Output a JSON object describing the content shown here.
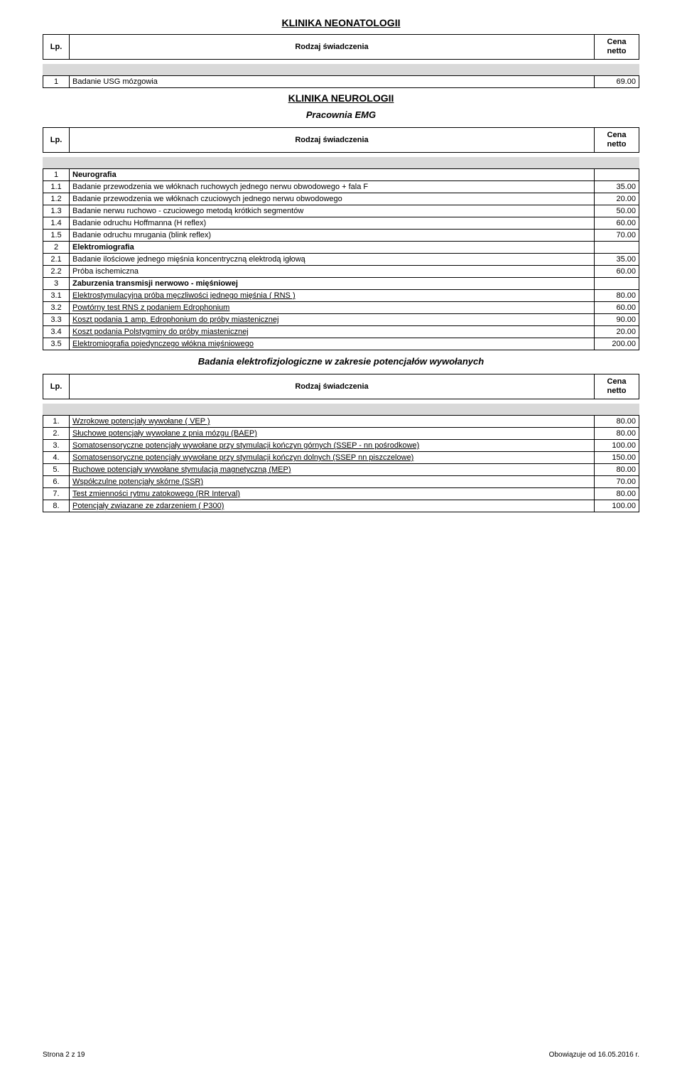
{
  "labels": {
    "lp": "Lp.",
    "rodzaj": "Rodzaj świadczenia",
    "cena1": "Cena",
    "cena2": "netto"
  },
  "sections": {
    "neonatologii": {
      "title": "KLINIKA NEONATOLOGII",
      "rows": [
        {
          "lp": "1",
          "name": "Badanie USG mózgowia",
          "price": "69.00"
        }
      ]
    },
    "neurologii": {
      "title": "KLINIKA NEUROLOGII",
      "sub1": {
        "title": "Pracownia EMG",
        "rows": [
          {
            "lp": "1",
            "name": "Neurografia",
            "bold": true,
            "price": ""
          },
          {
            "lp": "1.1",
            "name": "Badanie przewodzenia we włóknach ruchowych jednego nerwu obwodowego + fala F",
            "price": "35.00"
          },
          {
            "lp": "1.2",
            "name": "Badanie przewodzenia we włóknach czuciowych jednego nerwu obwodowego",
            "price": "20.00"
          },
          {
            "lp": "1.3",
            "name": "Badanie nerwu ruchowo - czuciowego metodą krótkich segmentów",
            "price": "50.00"
          },
          {
            "lp": "1.4",
            "name": "Badanie odruchu Hoffmanna (H reflex)",
            "price": "60.00"
          },
          {
            "lp": "1.5",
            "name": "Badanie odruchu mrugania (blink reflex)",
            "price": "70.00"
          },
          {
            "lp": "2",
            "name": "Elektromiografia",
            "bold": true,
            "price": ""
          },
          {
            "lp": "2.1",
            "name": "Badanie ilościowe jednego mięśnia koncentryczną elektrodą igłową",
            "price": "35.00"
          },
          {
            "lp": "2.2",
            "name": "Próba ischemiczna",
            "price": "60.00"
          },
          {
            "lp": "3",
            "name": "Zaburzenia transmisji nerwowo - mięśniowej",
            "bold": true,
            "price": ""
          },
          {
            "lp": "3.1",
            "name": "Elektrostymulacyjna próba męczliwości jednego mięśnia ( RNS )",
            "underline": true,
            "price": "80.00"
          },
          {
            "lp": "3.2",
            "name": "Powtórny test RNS z podaniem Edrophonium",
            "underline": true,
            "price": "60.00"
          },
          {
            "lp": "3.3",
            "name": "Koszt podania 1 amp. Edrophonium do próby miastenicznej",
            "underline": true,
            "price": "90.00"
          },
          {
            "lp": "3.4",
            "name": "Koszt podania Polstygminy do próby miastenicznej",
            "underline": true,
            "price": "20.00"
          },
          {
            "lp": "3.5",
            "name": "Elektromiografia pojedynczego włókna mięśniowego",
            "underline": true,
            "price": "200.00"
          }
        ]
      },
      "sub2": {
        "title": "Badania elektrofizjologiczne w zakresie potencjałów wywołanych",
        "rows": [
          {
            "lp": "1.",
            "name": "Wzrokowe potencjały wywołane ( VEP )",
            "underline": true,
            "price": "80.00"
          },
          {
            "lp": "2.",
            "name": "Słuchowe potencjały wywołane z pnia mózgu (BAEP)",
            "underline": true,
            "price": "80.00"
          },
          {
            "lp": "3.",
            "name": "Somatosensoryczne potencjały wywołane przy stymulacji kończyn górnych (SSEP - nn pośrodkowe)",
            "underline": true,
            "price": "100.00"
          },
          {
            "lp": "4.",
            "name": "Somatosensoryczne potencjały wywołane przy stymulacji kończyn dolnych (SSEP nn piszczelowe)",
            "underline": true,
            "price": "150.00"
          },
          {
            "lp": "5.",
            "name": "Ruchowe potencjały wywołane stymulacją magnetyczną (MEP)",
            "underline": true,
            "price": "80.00"
          },
          {
            "lp": "6.",
            "name": "Współczulne potencjały skórne (SSR)",
            "underline": true,
            "price": "70.00"
          },
          {
            "lp": "7.",
            "name": "Test zmienności rytmu zatokowego (RR Interval)",
            "underline": true,
            "price": "80.00"
          },
          {
            "lp": "8.",
            "name": "Potencjały zwiazane ze zdarzeniem ( P300)",
            "underline": true,
            "price": "100.00"
          }
        ]
      }
    }
  },
  "footer": {
    "left": "Strona 2 z 19",
    "right": "Obowiązuje od 16.05.2016 r."
  }
}
